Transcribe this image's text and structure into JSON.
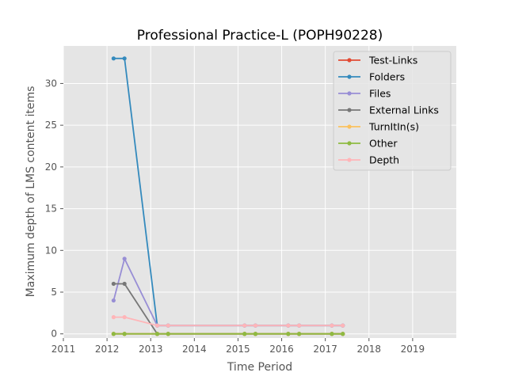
{
  "chart_data": {
    "type": "line",
    "title": "Professional Practice-L (POPH90228)",
    "xlabel": "Time Period",
    "ylabel": "Maximum depth of LMS content items",
    "xlim": [
      2011,
      2020
    ],
    "ylim": [
      -0.5,
      34.5
    ],
    "xticks": [
      "2011",
      "2012",
      "2013",
      "2014",
      "2015",
      "2016",
      "2017",
      "2018",
      "2019"
    ],
    "yticks": [
      "0",
      "5",
      "10",
      "15",
      "20",
      "25",
      "30"
    ],
    "grid": true,
    "legend_position": "top-right",
    "series": [
      {
        "name": "Test-Links",
        "color": "#E24A33",
        "points": [
          [
            2012.15,
            0
          ],
          [
            2012.4,
            0
          ],
          [
            2013.15,
            0
          ],
          [
            2013.4,
            0
          ],
          [
            2015.15,
            0
          ],
          [
            2015.4,
            0
          ],
          [
            2016.15,
            0
          ],
          [
            2016.4,
            0
          ],
          [
            2017.15,
            0
          ],
          [
            2017.4,
            0
          ]
        ]
      },
      {
        "name": "Folders",
        "color": "#348ABD",
        "points": [
          [
            2012.15,
            33
          ],
          [
            2012.4,
            33
          ],
          [
            2013.15,
            1
          ],
          [
            2013.4,
            1
          ],
          [
            2015.15,
            1
          ],
          [
            2015.4,
            1
          ],
          [
            2016.15,
            1
          ],
          [
            2016.4,
            1
          ],
          [
            2017.15,
            1
          ],
          [
            2017.4,
            1
          ]
        ]
      },
      {
        "name": "Files",
        "color": "#988ED5",
        "points": [
          [
            2012.15,
            4
          ],
          [
            2012.4,
            9
          ],
          [
            2013.15,
            1
          ],
          [
            2013.4,
            1
          ],
          [
            2015.15,
            1
          ],
          [
            2015.4,
            1
          ],
          [
            2016.15,
            1
          ],
          [
            2016.4,
            1
          ],
          [
            2017.15,
            1
          ],
          [
            2017.4,
            1
          ]
        ]
      },
      {
        "name": "External Links",
        "color": "#777777",
        "points": [
          [
            2012.15,
            6
          ],
          [
            2012.4,
            6
          ],
          [
            2013.15,
            0
          ],
          [
            2013.4,
            0
          ],
          [
            2015.15,
            0
          ],
          [
            2015.4,
            0
          ],
          [
            2016.15,
            0
          ],
          [
            2016.4,
            0
          ],
          [
            2017.15,
            0
          ],
          [
            2017.4,
            0
          ]
        ]
      },
      {
        "name": "TurnItIn(s)",
        "color": "#FBC15E",
        "points": [
          [
            2012.15,
            0
          ],
          [
            2012.4,
            0
          ],
          [
            2013.15,
            0
          ],
          [
            2013.4,
            0
          ],
          [
            2015.15,
            0
          ],
          [
            2015.4,
            0
          ],
          [
            2016.15,
            0
          ],
          [
            2016.4,
            0
          ],
          [
            2017.15,
            0
          ],
          [
            2017.4,
            0
          ]
        ]
      },
      {
        "name": "Other",
        "color": "#8EBA42",
        "points": [
          [
            2012.15,
            0
          ],
          [
            2012.4,
            0
          ],
          [
            2013.15,
            0
          ],
          [
            2013.4,
            0
          ],
          [
            2015.15,
            0
          ],
          [
            2015.4,
            0
          ],
          [
            2016.15,
            0
          ],
          [
            2016.4,
            0
          ],
          [
            2017.15,
            0
          ],
          [
            2017.4,
            0
          ]
        ]
      },
      {
        "name": "Depth",
        "color": "#FFB5B8",
        "points": [
          [
            2012.15,
            2
          ],
          [
            2012.4,
            2
          ],
          [
            2013.15,
            1
          ],
          [
            2013.4,
            1
          ],
          [
            2015.15,
            1
          ],
          [
            2015.4,
            1
          ],
          [
            2016.15,
            1
          ],
          [
            2016.4,
            1
          ],
          [
            2017.15,
            1
          ],
          [
            2017.4,
            1
          ]
        ]
      }
    ]
  }
}
